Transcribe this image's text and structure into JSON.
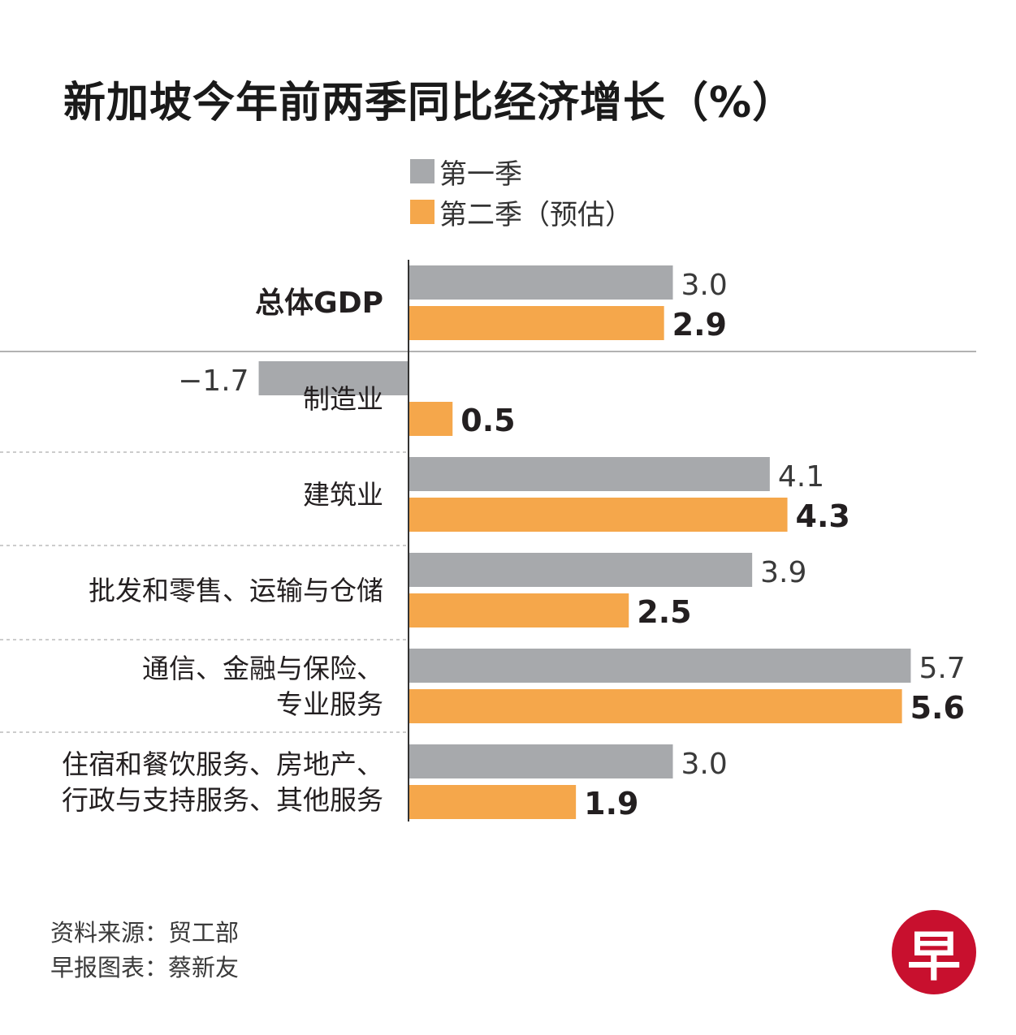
{
  "title": "新加坡今年前两季同比经济增长（%）",
  "source": {
    "data_source": "资料来源：贸工部",
    "chart_by": "早报图表：蔡新友"
  },
  "logo": {
    "text": "早"
  },
  "colors": {
    "q1": "#a7a9ac",
    "q2": "#f5a74b",
    "axis": "#333333",
    "separator": "#999999",
    "logo_red": "#c8102e"
  },
  "chart_data": {
    "type": "bar",
    "orientation": "horizontal",
    "title": "新加坡今年前两季同比经济增长（%）",
    "unit": "%",
    "legend_position": "top",
    "categories": [
      [
        "总体GDP"
      ],
      [
        "制造业"
      ],
      [
        "建筑业"
      ],
      [
        "批发和零售、运输与仓储"
      ],
      [
        "通信、金融与保险、",
        "专业服务"
      ],
      [
        "住宿和餐饮服务、房地产、",
        "行政与支持服务、其他服务"
      ]
    ],
    "series": [
      {
        "name": "第一季",
        "values": [
          3.0,
          -1.7,
          4.1,
          3.9,
          5.7,
          3.0
        ],
        "labels": [
          "3.0",
          "−1.7",
          "4.1",
          "3.9",
          "5.7",
          "3.0"
        ]
      },
      {
        "name": "第二季（预估）",
        "values": [
          2.9,
          0.5,
          4.3,
          2.5,
          5.6,
          1.9
        ],
        "labels": [
          "2.9",
          "0.5",
          "4.3",
          "2.5",
          "5.6",
          "1.9"
        ]
      }
    ],
    "xlim": [
      -1.7,
      5.7
    ],
    "grid": false
  }
}
